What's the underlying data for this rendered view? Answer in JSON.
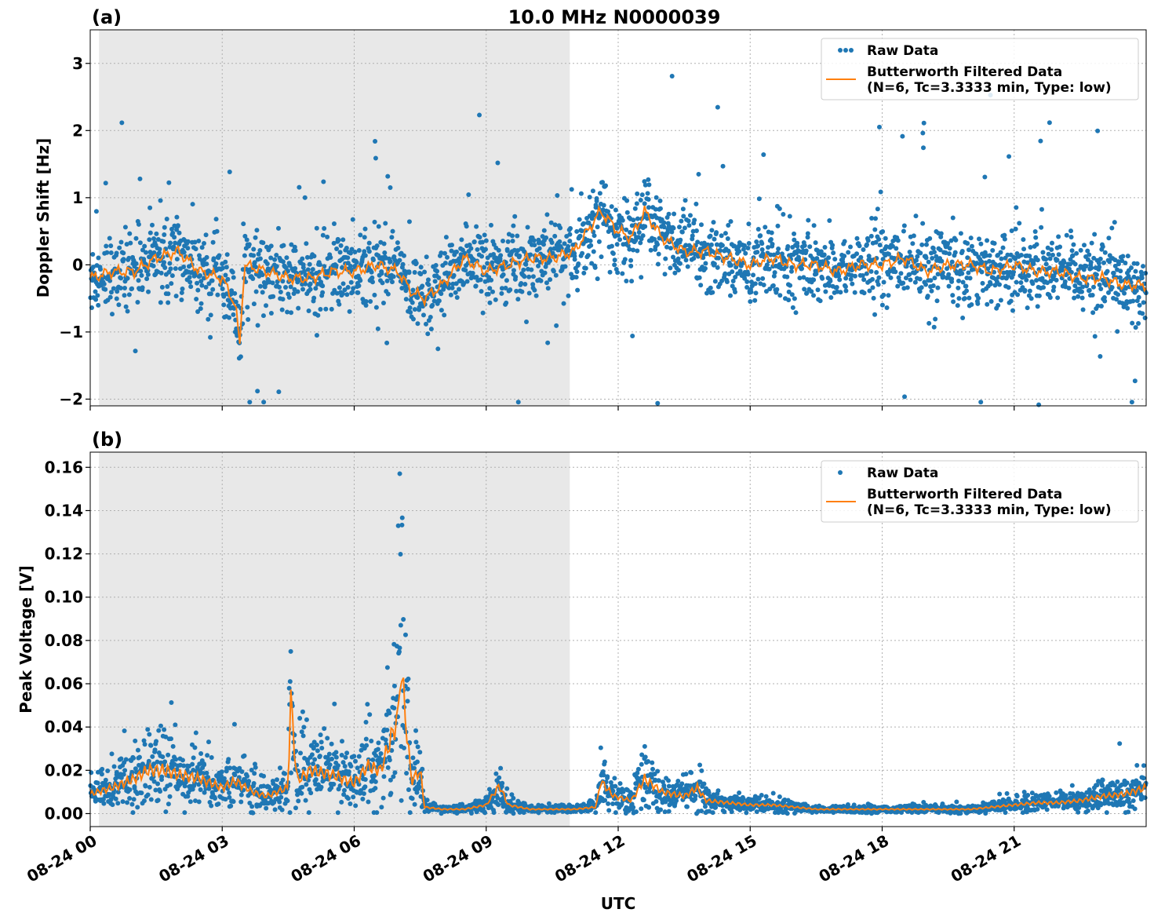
{
  "figure": {
    "title": "10.0 MHz N0000039",
    "xlabel": "UTC"
  },
  "colors": {
    "raw": "#1f77b4",
    "filtered": "#ff7f0e",
    "night_shade": "#e8e8e8",
    "grid": "#b0b0b0"
  },
  "legend": {
    "raw_label": "Raw Data",
    "filtered_label_line1": "Butterworth Filtered Data",
    "filtered_label_line2": "(N=6, Tc=3.3333 min, Type: low)",
    "placement": "upper right"
  },
  "chart_data": [
    {
      "type": "scatter",
      "panel_label": "(a)",
      "title": "10.0 MHz N0000039",
      "ylabel": "Doppler Shift [Hz]",
      "xlabel": "",
      "x_range_hours": [
        0,
        24
      ],
      "ylim": [
        -2.1,
        3.5
      ],
      "yticks": [
        -2,
        -1,
        0,
        1,
        2,
        3
      ],
      "yticklabels": [
        "−2",
        "−1",
        "0",
        "1",
        "2",
        "3"
      ],
      "shaded_region_hours": [
        0.2,
        10.9
      ],
      "grid": true,
      "series": [
        {
          "name": "Raw Data",
          "style": "points",
          "x": [
            0,
            0.5,
            1,
            1.5,
            2,
            2.5,
            3,
            3.3,
            3.4,
            3.5,
            4,
            4.5,
            5,
            5.5,
            6,
            6.5,
            7,
            7.3,
            7.6,
            8,
            8.5,
            9,
            9.5,
            10,
            10.5,
            11,
            11.3,
            11.6,
            12,
            12.3,
            12.6,
            13,
            13.5,
            14,
            14.5,
            15,
            15.5,
            16,
            16.5,
            17,
            17.5,
            18,
            18.5,
            19,
            19.5,
            20,
            20.5,
            21,
            21.5,
            22,
            22.5,
            23,
            23.5,
            24
          ],
          "y": [
            -0.2,
            -0.1,
            -0.1,
            0.1,
            0.2,
            -0.1,
            -0.2,
            -0.6,
            -1.2,
            0.0,
            -0.1,
            -0.2,
            -0.2,
            -0.1,
            -0.1,
            0.0,
            -0.1,
            -0.4,
            -0.5,
            -0.3,
            0.1,
            -0.1,
            0.0,
            0.1,
            0.1,
            0.2,
            0.5,
            0.8,
            0.5,
            0.4,
            0.8,
            0.4,
            0.2,
            0.2,
            0.1,
            0.0,
            0.1,
            0.0,
            0.0,
            -0.1,
            0.0,
            0.0,
            0.1,
            -0.1,
            0.0,
            0.0,
            -0.1,
            0.0,
            -0.1,
            -0.1,
            -0.2,
            -0.2,
            -0.3,
            -0.3
          ]
        },
        {
          "name": "Butterworth Filtered Data",
          "style": "line",
          "x": [
            0,
            0.5,
            1,
            1.5,
            2,
            2.5,
            3,
            3.3,
            3.4,
            3.5,
            4,
            4.5,
            5,
            5.5,
            6,
            6.5,
            7,
            7.3,
            7.6,
            8,
            8.5,
            9,
            9.5,
            10,
            10.5,
            11,
            11.3,
            11.6,
            12,
            12.3,
            12.6,
            13,
            13.5,
            14,
            14.5,
            15,
            15.5,
            16,
            16.5,
            17,
            17.5,
            18,
            18.5,
            19,
            19.5,
            20,
            20.5,
            21,
            21.5,
            22,
            22.5,
            23,
            23.5,
            24
          ],
          "y": [
            -0.2,
            -0.1,
            -0.1,
            0.1,
            0.2,
            -0.1,
            -0.2,
            -0.6,
            -1.2,
            0.0,
            -0.1,
            -0.2,
            -0.2,
            -0.1,
            -0.1,
            0.0,
            -0.1,
            -0.4,
            -0.5,
            -0.3,
            0.1,
            -0.1,
            0.0,
            0.1,
            0.1,
            0.2,
            0.5,
            0.8,
            0.5,
            0.4,
            0.8,
            0.4,
            0.2,
            0.2,
            0.1,
            0.0,
            0.1,
            0.0,
            0.0,
            -0.1,
            0.0,
            0.0,
            0.1,
            -0.1,
            0.0,
            0.0,
            -0.1,
            0.0,
            -0.1,
            -0.1,
            -0.2,
            -0.2,
            -0.3,
            -0.3
          ]
        }
      ]
    },
    {
      "type": "scatter",
      "panel_label": "(b)",
      "title": "",
      "ylabel": "Peak Voltage [V]",
      "xlabel": "UTC",
      "x_range_hours": [
        0,
        24
      ],
      "ylim": [
        -0.006,
        0.167
      ],
      "yticks": [
        0.0,
        0.02,
        0.04,
        0.06,
        0.08,
        0.1,
        0.12,
        0.14,
        0.16
      ],
      "yticklabels": [
        "0.00",
        "0.02",
        "0.04",
        "0.06",
        "0.08",
        "0.10",
        "0.12",
        "0.14",
        "0.16"
      ],
      "xticks": [
        0,
        3,
        6,
        9,
        12,
        15,
        18,
        21
      ],
      "xticklabels": [
        "08-24 00",
        "08-24 03",
        "08-24 06",
        "08-24 09",
        "08-24 12",
        "08-24 15",
        "08-24 18",
        "08-24 21"
      ],
      "shaded_region_hours": [
        0.2,
        10.9
      ],
      "grid": true,
      "series": [
        {
          "name": "Raw Data",
          "style": "points",
          "x": [
            0,
            0.5,
            1,
            1.3,
            1.7,
            2,
            2.5,
            3,
            3.3,
            3.7,
            4,
            4.5,
            4.55,
            4.7,
            5,
            5.5,
            6,
            6.3,
            6.6,
            7.0,
            7.05,
            7.3,
            7.5,
            7.6,
            8,
            8.5,
            9,
            9.3,
            9.5,
            10,
            10.5,
            11,
            11.5,
            11.6,
            11.9,
            12.3,
            12.6,
            13,
            13.5,
            13.8,
            14,
            14.5,
            15,
            15.5,
            16,
            16.5,
            17,
            17.5,
            18,
            18.5,
            19,
            19.5,
            20,
            20.5,
            21,
            21.5,
            22,
            22.5,
            23,
            23.5,
            24
          ],
          "y": [
            0.009,
            0.012,
            0.016,
            0.02,
            0.02,
            0.018,
            0.016,
            0.012,
            0.015,
            0.01,
            0.008,
            0.012,
            0.055,
            0.015,
            0.02,
            0.018,
            0.014,
            0.022,
            0.02,
            0.045,
            0.07,
            0.015,
            0.02,
            0.003,
            0.002,
            0.002,
            0.004,
            0.013,
            0.004,
            0.002,
            0.002,
            0.002,
            0.003,
            0.015,
            0.008,
            0.006,
            0.016,
            0.01,
            0.008,
            0.012,
            0.006,
            0.005,
            0.004,
            0.004,
            0.003,
            0.002,
            0.002,
            0.002,
            0.002,
            0.002,
            0.002,
            0.002,
            0.002,
            0.003,
            0.004,
            0.005,
            0.005,
            0.006,
            0.008,
            0.009,
            0.012
          ]
        },
        {
          "name": "Butterworth Filtered Data",
          "style": "line",
          "x": [
            0,
            0.5,
            1,
            1.3,
            1.7,
            2,
            2.5,
            3,
            3.3,
            3.7,
            4,
            4.5,
            4.55,
            4.7,
            5,
            5.5,
            6,
            6.3,
            6.6,
            7.0,
            7.05,
            7.3,
            7.5,
            7.6,
            8,
            8.5,
            9,
            9.3,
            9.5,
            10,
            10.5,
            11,
            11.5,
            11.6,
            11.9,
            12.3,
            12.6,
            13,
            13.5,
            13.8,
            14,
            14.5,
            15,
            15.5,
            16,
            16.5,
            17,
            17.5,
            18,
            18.5,
            19,
            19.5,
            20,
            20.5,
            21,
            21.5,
            22,
            22.5,
            23,
            23.5,
            24
          ],
          "y": [
            0.009,
            0.012,
            0.016,
            0.02,
            0.02,
            0.018,
            0.016,
            0.012,
            0.015,
            0.01,
            0.008,
            0.012,
            0.055,
            0.015,
            0.02,
            0.018,
            0.014,
            0.022,
            0.02,
            0.045,
            0.07,
            0.015,
            0.02,
            0.003,
            0.002,
            0.002,
            0.004,
            0.013,
            0.004,
            0.002,
            0.002,
            0.002,
            0.003,
            0.015,
            0.008,
            0.006,
            0.016,
            0.01,
            0.008,
            0.012,
            0.006,
            0.005,
            0.004,
            0.004,
            0.003,
            0.002,
            0.002,
            0.002,
            0.002,
            0.002,
            0.002,
            0.002,
            0.002,
            0.003,
            0.004,
            0.005,
            0.005,
            0.006,
            0.008,
            0.009,
            0.012
          ]
        }
      ]
    }
  ]
}
